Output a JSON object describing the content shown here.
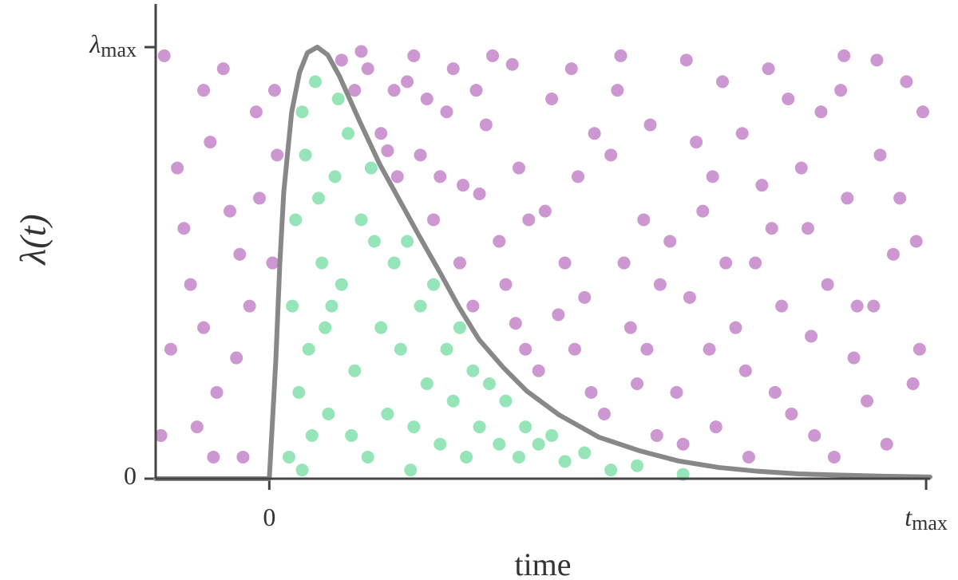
{
  "chart_data": {
    "type": "scatter",
    "xlabel": "time",
    "ylabel": "λ(t)",
    "xlim": [
      -1.73,
      10.06
    ],
    "ylim": [
      0,
      1.1
    ],
    "xticks": [
      0,
      {
        "value": 10,
        "label": "t",
        "label_sub": "max"
      }
    ],
    "yticks": [
      0,
      {
        "value": 1,
        "label": "λ",
        "label_sub": "max"
      }
    ],
    "series": [
      {
        "type": "scatter",
        "color": "#9b2fa3",
        "x": [
          -1.6,
          -1.4,
          -1.2,
          -1.0,
          -0.8,
          -0.6,
          -0.4,
          -0.2,
          -1.5,
          -1.1,
          -0.7,
          -0.3,
          -1.3,
          -0.9,
          -0.5,
          -0.15,
          -1.65,
          -1.0,
          -0.45,
          -0.85,
          0.05,
          0.08,
          0.12,
          1.1,
          1.3,
          1.5,
          1.7,
          1.9,
          1.4,
          1.8,
          1.95,
          2.1,
          2.3,
          2.5,
          2.7,
          2.9,
          2.2,
          2.6,
          2.8,
          2.4,
          2.95,
          3.1,
          3.3,
          3.5,
          3.7,
          3.9,
          3.2,
          3.4,
          3.6,
          3.8,
          3.95,
          3.15,
          3.75,
          4.1,
          4.3,
          4.5,
          4.7,
          4.9,
          4.2,
          4.4,
          4.6,
          4.8,
          4.95,
          4.65,
          5.1,
          5.3,
          5.5,
          5.7,
          5.9,
          5.2,
          5.4,
          5.6,
          5.8,
          5.95,
          5.35,
          5.75,
          6.1,
          6.3,
          6.5,
          6.7,
          6.9,
          6.2,
          6.4,
          6.6,
          6.8,
          6.95,
          6.35,
          6.75,
          7.1,
          7.3,
          7.5,
          7.7,
          7.9,
          7.2,
          7.4,
          7.6,
          7.8,
          7.95,
          7.25,
          7.65,
          8.1,
          8.3,
          8.5,
          8.7,
          8.9,
          8.2,
          8.4,
          8.6,
          8.8,
          8.95,
          8.25,
          8.75,
          9.1,
          9.3,
          9.5,
          9.7,
          9.9,
          9.2,
          9.4,
          9.6,
          9.8,
          9.95,
          9.25,
          9.85
        ],
        "values": [
          0.98,
          0.72,
          0.45,
          0.9,
          0.2,
          0.62,
          0.05,
          0.85,
          0.3,
          0.12,
          0.95,
          0.4,
          0.58,
          0.78,
          0.28,
          0.65,
          0.1,
          0.35,
          0.52,
          0.05,
          0.5,
          0.9,
          0.75,
          0.97,
          0.9,
          0.95,
          0.8,
          0.9,
          0.99,
          0.76,
          0.7,
          0.92,
          0.75,
          0.6,
          0.85,
          0.5,
          0.98,
          0.7,
          0.95,
          0.88,
          0.68,
          0.4,
          0.82,
          0.55,
          0.96,
          0.3,
          0.66,
          0.98,
          0.45,
          0.72,
          0.6,
          0.9,
          0.36,
          0.25,
          0.88,
          0.5,
          0.7,
          0.2,
          0.62,
          0.38,
          0.95,
          0.42,
          0.8,
          0.3,
          0.15,
          0.9,
          0.35,
          0.6,
          0.1,
          0.75,
          0.5,
          0.22,
          0.82,
          0.45,
          0.98,
          0.3,
          0.55,
          0.08,
          0.78,
          0.3,
          0.92,
          0.2,
          0.42,
          0.62,
          0.12,
          0.5,
          0.97,
          0.7,
          0.35,
          0.05,
          0.68,
          0.2,
          0.88,
          0.8,
          0.5,
          0.95,
          0.4,
          0.15,
          0.25,
          0.58,
          0.72,
          0.1,
          0.45,
          0.9,
          0.28,
          0.58,
          0.85,
          0.05,
          0.65,
          0.4,
          0.33,
          0.98,
          0.18,
          0.75,
          0.52,
          0.92,
          0.3,
          0.4,
          0.08,
          0.65,
          0.22,
          0.85,
          0.97,
          0.55
        ]
      },
      {
        "type": "scatter",
        "color": "#2ecc71",
        "x": [
          0.3,
          0.4,
          0.5,
          0.6,
          0.7,
          0.8,
          0.9,
          1.0,
          0.35,
          0.55,
          0.65,
          0.75,
          0.85,
          0.45,
          1.1,
          1.2,
          1.3,
          1.4,
          1.5,
          1.6,
          1.7,
          1.8,
          1.9,
          1.25,
          1.55,
          2.0,
          2.1,
          2.2,
          2.3,
          2.4,
          2.5,
          2.6,
          2.7,
          2.8,
          2.9,
          3.0,
          3.1,
          3.2,
          3.35,
          3.5,
          3.6,
          3.8,
          3.9,
          4.1,
          4.3,
          4.5,
          4.8,
          5.2,
          5.6,
          6.3,
          2.15,
          1.05,
          0.95,
          0.5
        ],
        "values": [
          0.05,
          0.6,
          0.85,
          0.3,
          0.92,
          0.5,
          0.15,
          0.7,
          0.4,
          0.75,
          0.1,
          0.65,
          0.35,
          0.2,
          0.45,
          0.8,
          0.25,
          0.6,
          0.05,
          0.55,
          0.35,
          0.15,
          0.5,
          0.1,
          0.72,
          0.3,
          0.55,
          0.12,
          0.4,
          0.22,
          0.45,
          0.08,
          0.3,
          0.18,
          0.35,
          0.05,
          0.25,
          0.12,
          0.22,
          0.08,
          0.18,
          0.05,
          0.12,
          0.08,
          0.1,
          0.04,
          0.06,
          0.02,
          0.03,
          0.01,
          0.02,
          0.88,
          0.4,
          0.02
        ]
      },
      {
        "type": "line",
        "color": "#888888",
        "x": [
          -1.73,
          0,
          0.1,
          0.16,
          0.22,
          0.34,
          0.46,
          0.58,
          0.73,
          0.89,
          1.07,
          1.37,
          1.68,
          1.98,
          2.28,
          2.59,
          2.89,
          3.19,
          3.56,
          3.92,
          4.41,
          5.02,
          5.63,
          6.23,
          6.84,
          7.45,
          8.06,
          9.27,
          10.06
        ],
        "values": [
          0,
          0,
          0.277,
          0.498,
          0.664,
          0.849,
          0.941,
          0.987,
          1.0,
          0.982,
          0.932,
          0.83,
          0.729,
          0.646,
          0.563,
          0.48,
          0.397,
          0.323,
          0.258,
          0.203,
          0.148,
          0.096,
          0.065,
          0.041,
          0.026,
          0.017,
          0.011,
          0.006,
          0.004
        ]
      }
    ]
  }
}
